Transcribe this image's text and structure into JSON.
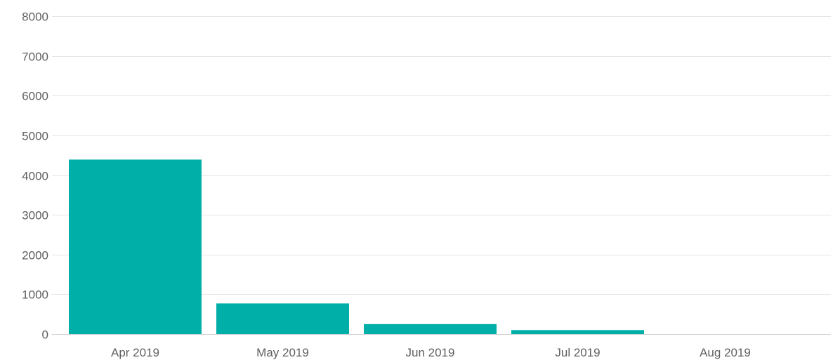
{
  "chart_data": {
    "type": "bar",
    "title": "",
    "xlabel": "",
    "ylabel": "",
    "categories": [
      "Apr 2019",
      "May 2019",
      "Jun 2019",
      "Jul 2019",
      "Aug 2019"
    ],
    "values": [
      4390,
      770,
      250,
      100,
      0
    ],
    "ylim": [
      0,
      8000
    ],
    "yticks": [
      0,
      1000,
      2000,
      3000,
      4000,
      5000,
      6000,
      7000,
      8000
    ],
    "grid": true,
    "legend": "none",
    "colors": {
      "bar": "#00afa7",
      "grid": "#e6e6e6",
      "text": "#5f5f5f"
    }
  }
}
